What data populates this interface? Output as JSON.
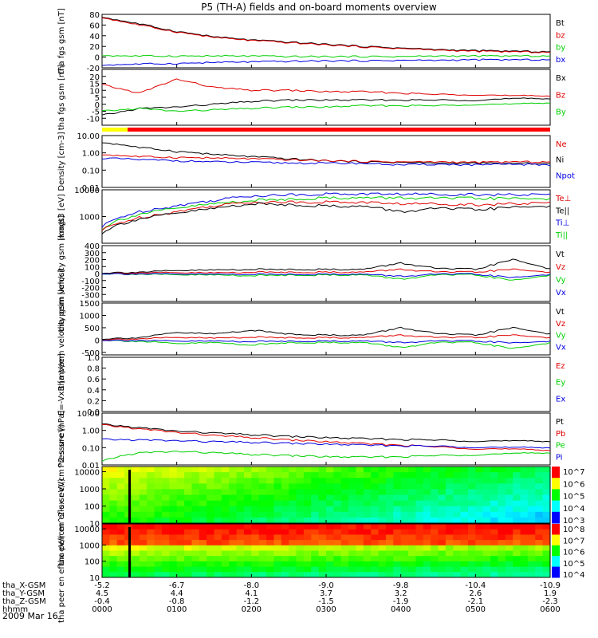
{
  "title": "P5 (TH-A) fields and on-board moments overview",
  "date": "2009 Mar 16",
  "colors": {
    "black": "#000000",
    "red": "#e00000",
    "green": "#00d000",
    "blue": "#0000e0"
  },
  "time_axis": {
    "rows": [
      {
        "label": "tha_X-GSM",
        "values": [
          "-5.2",
          "-6.7",
          "-8.0",
          "-9.0",
          "-9.8",
          "-10.4",
          "-10.9"
        ]
      },
      {
        "label": "tha_Y-GSM",
        "values": [
          "4.5",
          "4.4",
          "4.1",
          "3.7",
          "3.2",
          "2.6",
          "1.9"
        ]
      },
      {
        "label": "tha_Z-GSM",
        "values": [
          "-0.4",
          "-0.8",
          "-1.2",
          "-1.5",
          "-1.9",
          "-2.1",
          "-2.3"
        ]
      },
      {
        "label": "hhmm",
        "values": [
          "0000",
          "0100",
          "0200",
          "0300",
          "0400",
          "0500",
          "0600"
        ]
      }
    ],
    "hours": [
      0,
      1,
      2,
      3,
      4,
      5,
      6
    ]
  },
  "chart_data": [
    {
      "id": "fgs_mag",
      "type": "line",
      "title": "",
      "ylabel": "tha fgs gsm [nT]",
      "ylim": [
        -20,
        80
      ],
      "yticks": [
        "80",
        "60",
        "40",
        "20",
        "0",
        "-20"
      ],
      "legend": [
        {
          "name": "Bt",
          "color": "#000000"
        },
        {
          "name": "bz",
          "color": "#e00000"
        },
        {
          "name": "by",
          "color": "#00d000"
        },
        {
          "name": "bx",
          "color": "#0000e0"
        }
      ],
      "x": [
        0,
        0.5,
        1,
        1.5,
        2,
        2.5,
        3,
        3.5,
        4,
        4.5,
        5,
        5.5,
        6
      ],
      "series": [
        {
          "name": "Bt",
          "values": [
            75,
            62,
            48,
            38,
            32,
            28,
            24,
            20,
            17,
            14,
            12,
            11,
            10
          ]
        },
        {
          "name": "bz",
          "values": [
            74,
            60,
            47,
            37,
            31,
            27,
            23,
            19,
            16,
            13,
            11,
            10,
            9
          ]
        },
        {
          "name": "by",
          "values": [
            3,
            2,
            2,
            2,
            2,
            1,
            1,
            1,
            1,
            2,
            2,
            2,
            2
          ]
        },
        {
          "name": "bx",
          "values": [
            -15,
            -13,
            -12,
            -10,
            -9,
            -8,
            -7,
            -7,
            -6,
            -6,
            -5,
            -5,
            -5
          ]
        }
      ]
    },
    {
      "id": "fgs_zoom",
      "type": "line",
      "title": "",
      "ylabel": "tha fgs gsm [nT]",
      "ylim": [
        -15,
        25
      ],
      "yticks": [
        "20",
        "15",
        "10",
        "5",
        "0",
        "-5",
        "-10"
      ],
      "legend": [
        {
          "name": "Bx",
          "color": "#000000"
        },
        {
          "name": "Bz",
          "color": "#e00000"
        },
        {
          "name": "By",
          "color": "#00d000"
        }
      ],
      "x": [
        0,
        0.5,
        1,
        1.5,
        2,
        2.5,
        3,
        3.5,
        4,
        4.5,
        5,
        5.5,
        6
      ],
      "series": [
        {
          "name": "Bz",
          "values": [
            14,
            8,
            18,
            12,
            10,
            10,
            9,
            9,
            8,
            7,
            7,
            6,
            6
          ]
        },
        {
          "name": "Bx",
          "values": [
            -8,
            -3,
            -2,
            0,
            2,
            3,
            3,
            3,
            3,
            3,
            3,
            4,
            4
          ]
        },
        {
          "name": "By",
          "values": [
            -5,
            -3,
            -5,
            -4,
            -3,
            -2,
            -2,
            -1,
            -1,
            -1,
            0,
            0,
            1
          ]
        }
      ]
    },
    {
      "id": "density",
      "type": "line",
      "title": "",
      "ylabel": "Density [cm-3]",
      "yscale": "log",
      "ylim": [
        0.01,
        10
      ],
      "yticks": [
        "10.00",
        "1.00",
        "0.10",
        "0.01"
      ],
      "legend": [
        {
          "name": "Ne",
          "color": "#e00000"
        },
        {
          "name": "Ni",
          "color": "#000000"
        },
        {
          "name": "Npot",
          "color": "#0000e0"
        }
      ],
      "x": [
        0,
        0.5,
        1,
        1.5,
        2,
        2.5,
        3,
        3.5,
        4,
        4.5,
        5,
        5.5,
        6
      ],
      "series": [
        {
          "name": "Ni",
          "values": [
            4,
            2,
            1.2,
            0.8,
            0.6,
            0.45,
            0.35,
            0.3,
            0.28,
            0.25,
            0.25,
            0.24,
            0.25
          ]
        },
        {
          "name": "Ne",
          "values": [
            0.8,
            0.6,
            0.55,
            0.5,
            0.45,
            0.4,
            0.35,
            0.32,
            0.3,
            0.3,
            0.28,
            0.3,
            0.3
          ]
        },
        {
          "name": "Npot",
          "values": [
            0.5,
            0.4,
            0.35,
            0.3,
            0.28,
            0.26,
            0.25,
            0.25,
            0.2,
            0.22,
            0.2,
            0.22,
            0.2
          ]
        }
      ]
    },
    {
      "id": "temperature",
      "type": "line",
      "title": "",
      "ylabel": "magt3 [eV]",
      "yscale": "log",
      "ylim": [
        100,
        10000
      ],
      "yticks": [
        "10000",
        "1000"
      ],
      "legend": [
        {
          "name": "Te⊥",
          "color": "#e00000"
        },
        {
          "name": "Te||",
          "color": "#000000"
        },
        {
          "name": "Ti⊥",
          "color": "#0000e0"
        },
        {
          "name": "Ti||",
          "color": "#00d000"
        }
      ],
      "x": [
        0,
        0.5,
        1,
        1.5,
        2,
        2.5,
        3,
        3.5,
        4,
        4.5,
        5,
        5.5,
        6
      ],
      "series": [
        {
          "name": "Ti⊥",
          "values": [
            400,
            1500,
            2500,
            4000,
            6000,
            6500,
            7000,
            7000,
            7000,
            6800,
            6800,
            6500,
            6500
          ]
        },
        {
          "name": "Ti||",
          "values": [
            350,
            1200,
            2000,
            3000,
            4000,
            4500,
            5000,
            5000,
            5000,
            4800,
            4800,
            4700,
            4700
          ]
        },
        {
          "name": "Te⊥",
          "values": [
            300,
            900,
            1500,
            2500,
            3500,
            3500,
            3500,
            3400,
            3000,
            3000,
            2800,
            3000,
            3200
          ]
        },
        {
          "name": "Te||",
          "values": [
            250,
            800,
            1300,
            2000,
            3000,
            2800,
            2500,
            2400,
            1500,
            2000,
            1800,
            2200,
            2500
          ]
        }
      ]
    },
    {
      "id": "peim_velocity",
      "type": "line",
      "title": "",
      "ylabel": "tha peim velocity gsm [km/s]",
      "ylim": [
        -400,
        400
      ],
      "yticks": [
        "400",
        "300",
        "200",
        "100",
        "0",
        "-100",
        "-200",
        "-300"
      ],
      "legend": [
        {
          "name": "Vt",
          "color": "#000000"
        },
        {
          "name": "Vz",
          "color": "#e00000"
        },
        {
          "name": "Vy",
          "color": "#00d000"
        },
        {
          "name": "Vx",
          "color": "#0000e0"
        }
      ],
      "x": [
        0,
        0.5,
        1,
        1.5,
        2,
        2.5,
        3,
        3.5,
        4,
        4.5,
        5,
        5.5,
        6
      ],
      "series": [
        {
          "name": "Vt",
          "values": [
            10,
            20,
            40,
            50,
            60,
            60,
            60,
            60,
            150,
            70,
            60,
            200,
            70
          ]
        },
        {
          "name": "Vz",
          "values": [
            0,
            10,
            10,
            10,
            20,
            20,
            20,
            20,
            60,
            20,
            20,
            60,
            20
          ]
        },
        {
          "name": "Vy",
          "values": [
            0,
            -10,
            -20,
            -20,
            -30,
            -20,
            -20,
            -20,
            -80,
            -20,
            -20,
            -100,
            -20
          ]
        },
        {
          "name": "Vx",
          "values": [
            0,
            -5,
            -10,
            -10,
            -10,
            -10,
            -10,
            -10,
            -40,
            -10,
            -10,
            -60,
            -10
          ]
        }
      ]
    },
    {
      "id": "peem_velocity",
      "type": "line",
      "title": "",
      "ylabel": "tha peem velocity gsm [km/s]",
      "ylim": [
        -600,
        1500
      ],
      "yticks": [
        "1500",
        "1000",
        "500",
        "0",
        "-500"
      ],
      "legend": [
        {
          "name": "Vt",
          "color": "#000000"
        },
        {
          "name": "Vz",
          "color": "#e00000"
        },
        {
          "name": "Vy",
          "color": "#00d000"
        },
        {
          "name": "Vx",
          "color": "#0000e0"
        }
      ],
      "x": [
        0,
        0.5,
        1,
        1.5,
        2,
        2.5,
        3,
        3.5,
        4,
        4.5,
        5,
        5.5,
        6
      ],
      "series": [
        {
          "name": "Vt",
          "values": [
            50,
            100,
            300,
            250,
            400,
            250,
            200,
            200,
            500,
            250,
            200,
            500,
            250
          ]
        },
        {
          "name": "Vz",
          "values": [
            20,
            50,
            100,
            80,
            120,
            100,
            100,
            100,
            200,
            100,
            100,
            200,
            100
          ]
        },
        {
          "name": "Vy",
          "values": [
            0,
            -50,
            -150,
            -100,
            -200,
            -100,
            -100,
            -100,
            -300,
            -100,
            -100,
            -350,
            -100
          ]
        },
        {
          "name": "Vx",
          "values": [
            0,
            -20,
            -50,
            -40,
            -60,
            -40,
            -40,
            -40,
            -100,
            -40,
            -40,
            -120,
            -40
          ]
        }
      ]
    },
    {
      "id": "efield",
      "type": "line",
      "title": "",
      "ylabel": "E=-VxB [mV/m]",
      "ylim": [
        0,
        1
      ],
      "yticks": [
        "1.0",
        "0.8",
        "0.6",
        "0.4",
        "0.2",
        "0.0"
      ],
      "legend": [
        {
          "name": "Ez",
          "color": "#e00000"
        },
        {
          "name": "Ey",
          "color": "#00d000"
        },
        {
          "name": "Ex",
          "color": "#0000e0"
        }
      ],
      "x": [],
      "series": []
    },
    {
      "id": "pressure",
      "type": "line",
      "title": "",
      "ylabel": "Pressure [nPa]",
      "yscale": "log",
      "ylim": [
        0.01,
        10
      ],
      "yticks": [
        "10.00",
        "1.00",
        "0.10",
        "0.01"
      ],
      "legend": [
        {
          "name": "Pt",
          "color": "#000000"
        },
        {
          "name": "Pb",
          "color": "#e00000"
        },
        {
          "name": "Pe",
          "color": "#00d000"
        },
        {
          "name": "Pi",
          "color": "#0000e0"
        }
      ],
      "x": [
        0,
        0.5,
        1,
        1.5,
        2,
        2.5,
        3,
        3.5,
        4,
        4.5,
        5,
        5.5,
        6
      ],
      "series": [
        {
          "name": "Pt",
          "values": [
            2.2,
            1.4,
            0.9,
            0.7,
            0.55,
            0.45,
            0.38,
            0.33,
            0.3,
            0.27,
            0.25,
            0.24,
            0.23
          ]
        },
        {
          "name": "Pb",
          "values": [
            2,
            1.2,
            0.75,
            0.5,
            0.38,
            0.28,
            0.22,
            0.17,
            0.14,
            0.11,
            0.09,
            0.08,
            0.07
          ]
        },
        {
          "name": "Pi",
          "values": [
            0.3,
            0.28,
            0.25,
            0.22,
            0.2,
            0.18,
            0.16,
            0.14,
            0.13,
            0.12,
            0.11,
            0.1,
            0.1
          ]
        },
        {
          "name": "Pe",
          "values": [
            0.015,
            0.05,
            0.06,
            0.05,
            0.04,
            0.035,
            0.03,
            0.028,
            0.03,
            0.035,
            0.04,
            0.045,
            0.05
          ]
        }
      ]
    },
    {
      "id": "peir_spectrogram",
      "type": "heatmap",
      "title": "",
      "ylabel": "tha peir en eflux eV/(cm^2-s-sr-eV)",
      "yscale": "log",
      "ylim": [
        10,
        20000
      ],
      "yticks": [
        "10000",
        "1000",
        "100",
        "10"
      ],
      "colorbar": {
        "labels": [
          "10^7",
          "10^6",
          "10^5",
          "10^4",
          "10^3"
        ]
      }
    },
    {
      "id": "peer_spectrogram",
      "type": "heatmap",
      "title": "",
      "ylabel": "tha peer en eflux eV/(cm^2-s-sr-eV)",
      "yscale": "log",
      "ylim": [
        10,
        20000
      ],
      "yticks": [
        "10000",
        "1000",
        "100",
        "10"
      ],
      "colorbar": {
        "labels": [
          "10^8",
          "10^7",
          "10^6",
          "10^5",
          "10^4"
        ]
      }
    }
  ]
}
